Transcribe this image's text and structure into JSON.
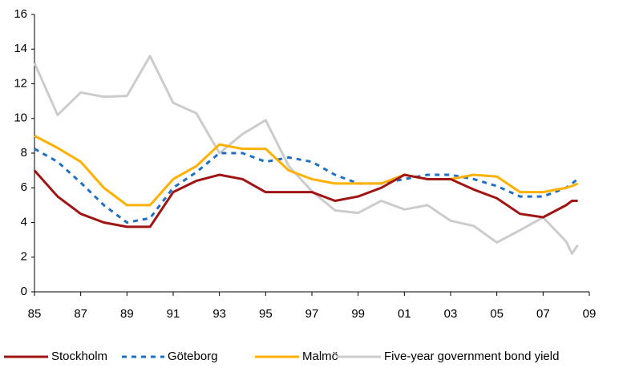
{
  "chart_data": {
    "type": "line",
    "x": [
      1985,
      1986,
      1987,
      1988,
      1989,
      1990,
      1991,
      1992,
      1993,
      1994,
      1995,
      1996,
      1997,
      1998,
      1999,
      2000,
      2001,
      2002,
      2003,
      2004,
      2005,
      2006,
      2007,
      2008,
      2008.25,
      2008.5
    ],
    "series": [
      {
        "name": "Stockholm",
        "color": "#a01414",
        "dash": false,
        "values": [
          7.0,
          5.5,
          4.5,
          4.0,
          3.75,
          3.75,
          5.75,
          6.4,
          6.75,
          6.5,
          5.75,
          5.75,
          5.75,
          5.25,
          5.5,
          6.0,
          6.75,
          6.5,
          6.5,
          5.9,
          5.4,
          4.5,
          4.3,
          5.0,
          5.25,
          5.25
        ]
      },
      {
        "name": "Göteborg",
        "color": "#1f6fc5",
        "dash": true,
        "values": [
          8.25,
          7.5,
          6.3,
          5.0,
          4.0,
          4.25,
          6.0,
          6.9,
          8.0,
          8.0,
          7.5,
          7.75,
          7.5,
          6.75,
          6.25,
          6.25,
          6.5,
          6.75,
          6.75,
          6.5,
          6.1,
          5.5,
          5.5,
          6.0,
          6.25,
          6.5
        ]
      },
      {
        "name": "Malmö",
        "color": "#ffb000",
        "dash": false,
        "values": [
          9.0,
          8.3,
          7.5,
          6.0,
          5.0,
          5.0,
          6.5,
          7.25,
          8.5,
          8.25,
          8.25,
          7.0,
          6.5,
          6.25,
          6.25,
          6.25,
          6.75,
          6.5,
          6.5,
          6.75,
          6.65,
          5.75,
          5.75,
          6.0,
          6.1,
          6.25
        ]
      },
      {
        "name": "Five-year government bond yield",
        "color": "#cccccc",
        "dash": false,
        "values": [
          13.2,
          10.2,
          11.5,
          11.25,
          11.3,
          13.6,
          10.9,
          10.3,
          8.0,
          9.1,
          9.9,
          7.25,
          5.8,
          4.7,
          4.55,
          5.25,
          4.75,
          5.0,
          4.1,
          3.8,
          2.85,
          3.55,
          4.3,
          2.9,
          2.2,
          2.7
        ]
      }
    ],
    "xlim": [
      1985,
      2009
    ],
    "xticks": [
      {
        "value": 1985,
        "label": "85"
      },
      {
        "value": 1987,
        "label": "87"
      },
      {
        "value": 1989,
        "label": "89"
      },
      {
        "value": 1991,
        "label": "91"
      },
      {
        "value": 1993,
        "label": "93"
      },
      {
        "value": 1995,
        "label": "95"
      },
      {
        "value": 1997,
        "label": "97"
      },
      {
        "value": 1999,
        "label": "99"
      },
      {
        "value": 2001,
        "label": "01"
      },
      {
        "value": 2003,
        "label": "03"
      },
      {
        "value": 2005,
        "label": "05"
      },
      {
        "value": 2007,
        "label": "07"
      },
      {
        "value": 2009,
        "label": "09"
      }
    ],
    "ylim": [
      0,
      16
    ],
    "yticks": [
      0,
      2,
      4,
      6,
      8,
      10,
      12,
      14,
      16
    ],
    "grid": false,
    "legend": "bottom"
  }
}
